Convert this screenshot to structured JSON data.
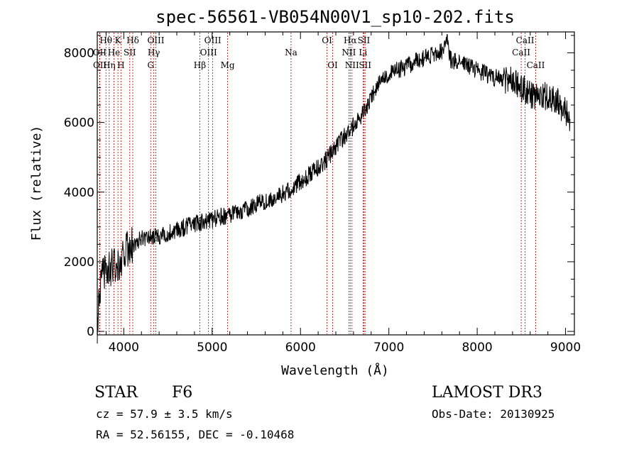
{
  "chart_data": {
    "type": "line",
    "title": "spec-56561-VB054N00V1_sp10-202.fits",
    "xlabel": "Wavelength (Å)",
    "ylabel": "Flux (relative)",
    "xlim": [
      3700,
      9100
    ],
    "ylim": [
      -100,
      8600
    ],
    "xticks": [
      4000,
      5000,
      6000,
      7000,
      8000,
      9000
    ],
    "yticks": [
      0,
      2000,
      4000,
      6000,
      8000
    ],
    "series": [
      {
        "name": "spectrum",
        "x": [
          3700,
          3750,
          3800,
          3850,
          3900,
          3950,
          4000,
          4050,
          4100,
          4150,
          4200,
          4300,
          4400,
          4500,
          4600,
          4700,
          4800,
          4900,
          5000,
          5100,
          5200,
          5300,
          5400,
          5500,
          5600,
          5700,
          5800,
          5900,
          6000,
          6100,
          6200,
          6300,
          6400,
          6500,
          6550,
          6600,
          6700,
          6800,
          6900,
          7000,
          7100,
          7200,
          7300,
          7400,
          7500,
          7600,
          7650,
          7700,
          7800,
          7900,
          8000,
          8100,
          8200,
          8300,
          8400,
          8500,
          8600,
          8700,
          8800,
          8900,
          9000,
          9050
        ],
        "y": [
          200,
          1500,
          1700,
          1800,
          1900,
          2000,
          2200,
          2400,
          2500,
          2600,
          2650,
          2700,
          2750,
          2800,
          2900,
          3000,
          3100,
          3150,
          3200,
          3300,
          3350,
          3450,
          3500,
          3650,
          3750,
          3850,
          3950,
          4100,
          4300,
          4500,
          4700,
          4950,
          5300,
          5600,
          5700,
          5900,
          6200,
          6700,
          7200,
          7400,
          7500,
          7600,
          7750,
          7850,
          7950,
          8050,
          8500,
          7800,
          7750,
          7650,
          7500,
          7400,
          7300,
          7250,
          7200,
          7000,
          6800,
          6700,
          6800,
          6600,
          6300,
          6100
        ]
      }
    ],
    "spectral_lines": [
      {
        "label": "Hθ",
        "x": 3798,
        "row": 0
      },
      {
        "label": "K",
        "x": 3934,
        "row": 0
      },
      {
        "label": "Hδ",
        "x": 4102,
        "row": 0
      },
      {
        "label": "OIII",
        "x": 4363,
        "row": 0
      },
      {
        "label": "OIII",
        "x": 5007,
        "row": 0
      },
      {
        "label": "OI",
        "x": 6300,
        "row": 0
      },
      {
        "label": "Hα",
        "x": 6563,
        "row": 0
      },
      {
        "label": "SII",
        "x": 6717,
        "row": 0
      },
      {
        "label": "CaII",
        "x": 8542,
        "row": 0
      },
      {
        "label": "OII",
        "x": 3727,
        "row": 1
      },
      {
        "label": "He",
        "x": 3889,
        "row": 1
      },
      {
        "label": "SII",
        "x": 4068,
        "row": 1
      },
      {
        "label": "Hγ",
        "x": 4340,
        "row": 1
      },
      {
        "label": "OIII",
        "x": 4959,
        "row": 1
      },
      {
        "label": "Na",
        "x": 5893,
        "row": 1
      },
      {
        "label": "NII",
        "x": 6548,
        "row": 1
      },
      {
        "label": "Li",
        "x": 6708,
        "row": 1
      },
      {
        "label": "CaII",
        "x": 8498,
        "row": 1
      },
      {
        "label": "OII",
        "x": 3729,
        "row": 2
      },
      {
        "label": "Hη",
        "x": 3835,
        "row": 2
      },
      {
        "label": "H",
        "x": 3968,
        "row": 2
      },
      {
        "label": "G",
        "x": 4305,
        "row": 2
      },
      {
        "label": "Hβ",
        "x": 4861,
        "row": 2
      },
      {
        "label": "Mg",
        "x": 5175,
        "row": 2
      },
      {
        "label": "OI",
        "x": 6364,
        "row": 2
      },
      {
        "label": "NII",
        "x": 6583,
        "row": 2
      },
      {
        "label": "SII",
        "x": 6731,
        "row": 2
      },
      {
        "label": "CaII",
        "x": 8662,
        "row": 2
      }
    ]
  },
  "footer": {
    "class": "STAR",
    "subclass": "F6",
    "survey": "LAMOST DR3",
    "cz": "cz = 57.9 ± 3.5 km/s",
    "obs_date": "Obs-Date: 20130925",
    "radec": "RA =  52.56155, DEC =  -0.10468"
  }
}
